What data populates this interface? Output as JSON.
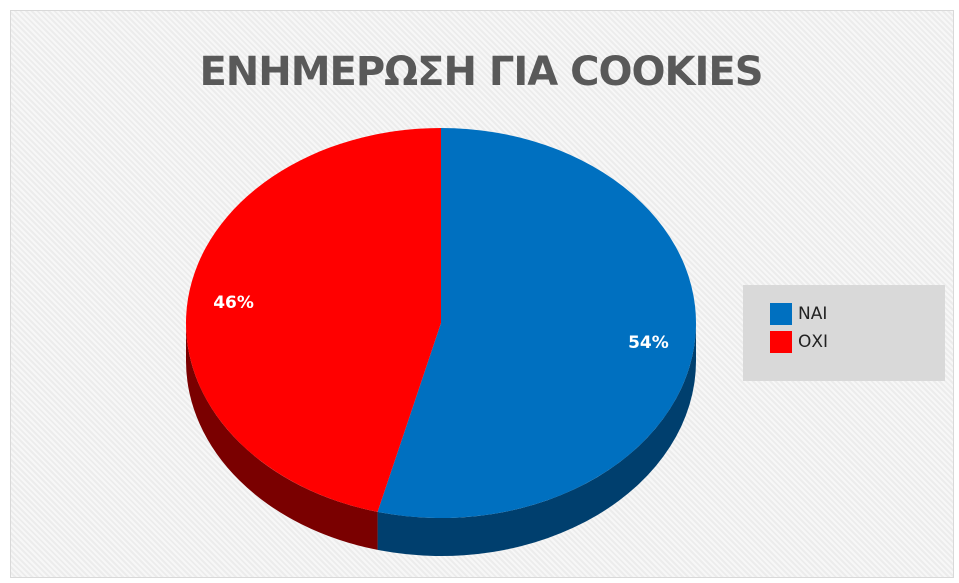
{
  "chart_data": {
    "type": "pie",
    "title": "ΕΝΗΜΕΡΩΣΗ ΓΙΑ COOKIES",
    "categories": [
      "ΝΑΙ",
      "ΟΧΙ"
    ],
    "values": [
      54,
      46
    ],
    "data_labels": [
      "54%",
      "46%"
    ],
    "colors": [
      "#0070c0",
      "#ff0000"
    ],
    "side_colors": [
      "#003f6e",
      "#7a0000"
    ],
    "legend_position": "right",
    "3d": true
  }
}
